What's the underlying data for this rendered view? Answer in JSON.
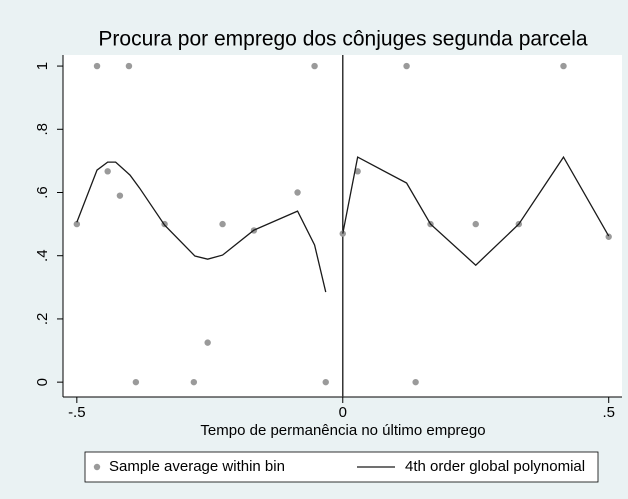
{
  "chart_data": {
    "type": "scatter",
    "title": "Procura por emprego dos cônjuges segunda parcela",
    "xlabel": "Tempo de permanência no último emprego",
    "xlim": [
      -0.526,
      0.525
    ],
    "ylim": [
      -0.047,
      1.035
    ],
    "xticks": [
      {
        "value": -0.5,
        "label": "-.5"
      },
      0,
      {
        "value": 0.5,
        "label": ".5"
      }
    ],
    "yticks": [
      0,
      {
        "value": 0.2,
        "label": ".2"
      },
      {
        "value": 0.4,
        "label": ".4"
      },
      {
        "value": 0.6,
        "label": ".6"
      },
      {
        "value": 0.8,
        "label": ".8"
      },
      1
    ],
    "vline": 0,
    "legend": "bottom",
    "series": [
      {
        "name": "Sample average within bin",
        "type": "scatter",
        "color": "#9a9a9a",
        "x": [
          -0.5,
          -0.462,
          -0.442,
          -0.419,
          -0.402,
          -0.389,
          -0.335,
          -0.28,
          -0.254,
          -0.226,
          -0.167,
          -0.085,
          -0.053,
          -0.032,
          0,
          0.028,
          0.12,
          0.137,
          0.165,
          0.25,
          0.331,
          0.415,
          0.5
        ],
        "values": [
          0.5,
          1,
          0.667,
          0.59,
          1,
          0,
          0.5,
          0,
          0.125,
          0.5,
          0.48,
          0.6,
          1,
          0,
          0.47,
          0.667,
          1,
          0,
          0.5,
          0.5,
          0.5,
          1,
          0.46
        ]
      },
      {
        "name": "4th order global polynomial",
        "type": "line",
        "color": "#1a1a1a",
        "x": [
          -0.5,
          -0.462,
          -0.442,
          -0.427,
          -0.4,
          -0.382,
          -0.335,
          -0.278,
          -0.254,
          -0.226,
          -0.167,
          -0.085,
          -0.053,
          -0.032,
          null,
          0,
          0.028,
          0.12,
          0.165,
          0.25,
          0.331,
          0.415,
          0.5
        ],
        "values": [
          0.506,
          0.671,
          0.696,
          0.696,
          0.655,
          0.614,
          0.497,
          0.399,
          0.389,
          0.402,
          0.481,
          0.541,
          0.434,
          0.285,
          null,
          0.47,
          0.712,
          0.63,
          0.5,
          0.37,
          0.5,
          0.712,
          0.462
        ]
      }
    ]
  }
}
